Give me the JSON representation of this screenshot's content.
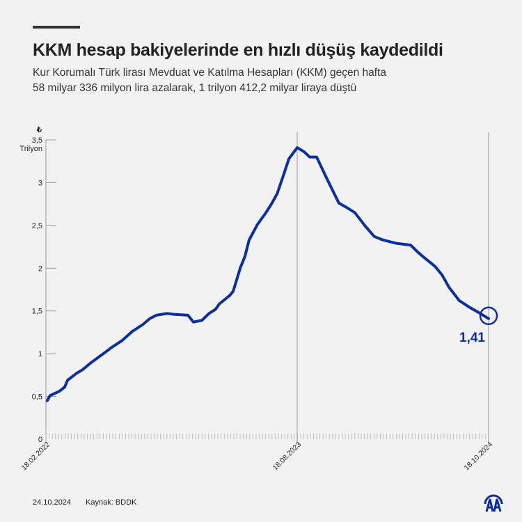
{
  "header": {
    "title": "KKM hesap bakiyelerinde en hızlı düşüş kaydedildi",
    "subtitle_line1": "Kur Korumalı Türk lirası Mevduat ve Katılma Hesapları (KKM) geçen hafta",
    "subtitle_line2": "58 milyar 336 milyon lira azalarak, 1 trilyon 412,2 milyar liraya düştü"
  },
  "footer": {
    "date": "24.10.2024",
    "source": "Kaynak: BDDK",
    "logo": "AA"
  },
  "chart_data": {
    "type": "line",
    "title": "KKM hesap bakiyelerinde en hızlı düşüş kaydedildi",
    "ylabel_symbol": "₺",
    "ylabel_unit": "Trilyon",
    "ylim": [
      0,
      3.5
    ],
    "xlim": [
      0,
      139
    ],
    "yticks": [
      0,
      0.5,
      1,
      1.5,
      2,
      2.5,
      3,
      3.5
    ],
    "ytick_labels": [
      "0",
      "0,5",
      "1",
      "1,5",
      "2",
      "2,5",
      "3",
      "3,5"
    ],
    "xticks": [
      {
        "x": 0,
        "label": "18.02.2022"
      },
      {
        "x": 78.9,
        "label": "18.08.2023"
      },
      {
        "x": 139,
        "label": "18.10.2024"
      }
    ],
    "x_unit": "weeks since 18.02.2022",
    "end_label": "1,41",
    "line_color": "#0b2fa3",
    "series": [
      {
        "name": "KKM",
        "points": [
          [
            0.4,
            0.45
          ],
          [
            1.3,
            0.51
          ],
          [
            4.2,
            0.56
          ],
          [
            5.9,
            0.61
          ],
          [
            6.8,
            0.69
          ],
          [
            9.6,
            0.77
          ],
          [
            11.4,
            0.81
          ],
          [
            14,
            0.89
          ],
          [
            18.4,
            1.01
          ],
          [
            20.5,
            1.07
          ],
          [
            23.8,
            1.15
          ],
          [
            27.1,
            1.26
          ],
          [
            30.4,
            1.34
          ],
          [
            32.6,
            1.41
          ],
          [
            34.7,
            1.45
          ],
          [
            38,
            1.47
          ],
          [
            40.2,
            1.46
          ],
          [
            44.6,
            1.45
          ],
          [
            46.3,
            1.37
          ],
          [
            49,
            1.39
          ],
          [
            51.2,
            1.47
          ],
          [
            53.3,
            1.52
          ],
          [
            54.4,
            1.58
          ],
          [
            57.7,
            1.68
          ],
          [
            58.8,
            1.73
          ],
          [
            61,
            2.0
          ],
          [
            62.5,
            2.14
          ],
          [
            63.8,
            2.33
          ],
          [
            66.4,
            2.51
          ],
          [
            69.1,
            2.65
          ],
          [
            70.8,
            2.75
          ],
          [
            72.6,
            2.87
          ],
          [
            74.7,
            3.1
          ],
          [
            76.3,
            3.28
          ],
          [
            78.9,
            3.41
          ],
          [
            81.1,
            3.36
          ],
          [
            82.8,
            3.3
          ],
          [
            85,
            3.3
          ],
          [
            88.3,
            3.04
          ],
          [
            92,
            2.76
          ],
          [
            94.4,
            2.71
          ],
          [
            97,
            2.65
          ],
          [
            100.3,
            2.49
          ],
          [
            103.1,
            2.37
          ],
          [
            105.8,
            2.33
          ],
          [
            110.1,
            2.29
          ],
          [
            114.5,
            2.27
          ],
          [
            116.7,
            2.19
          ],
          [
            118.9,
            2.12
          ],
          [
            122.2,
            2.02
          ],
          [
            124.4,
            1.92
          ],
          [
            126.5,
            1.78
          ],
          [
            129.8,
            1.62
          ],
          [
            133.1,
            1.54
          ],
          [
            136.4,
            1.47
          ],
          [
            139,
            1.41
          ]
        ]
      }
    ]
  }
}
